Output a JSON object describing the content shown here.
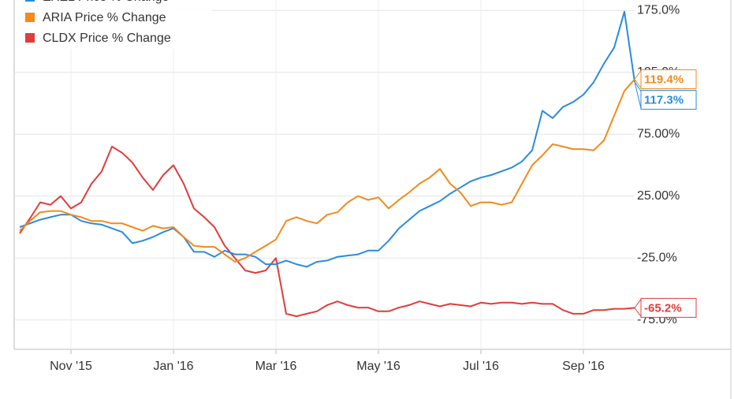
{
  "chart_data": {
    "type": "line",
    "categories": [
      null,
      null,
      null,
      null,
      null,
      "Nov '15",
      null,
      null,
      null,
      null,
      null,
      null,
      null,
      null,
      null,
      "Jan '16",
      null,
      null,
      null,
      null,
      null,
      null,
      null,
      null,
      null,
      "Mar '16",
      null,
      null,
      null,
      null,
      null,
      null,
      null,
      null,
      null,
      "May '16",
      null,
      null,
      null,
      null,
      null,
      null,
      null,
      null,
      null,
      "Jul '16",
      null,
      null,
      null,
      null,
      null,
      null,
      null,
      null,
      null,
      "Sep '16",
      null,
      null,
      null,
      null,
      null
    ],
    "series": [
      {
        "name": "EXEL Price % Change",
        "color": "#2a8be0",
        "values": [
          0,
          3,
          6,
          8,
          10,
          10,
          5,
          3,
          2,
          -1,
          -4,
          -13,
          -11,
          -8,
          -4,
          -1,
          -8,
          -20,
          -20,
          -24,
          -19,
          -22,
          -22,
          -24,
          -30,
          -30,
          -27,
          -30,
          -32,
          -28,
          -27,
          -24,
          -23,
          -22,
          -19,
          -19,
          -11,
          -1,
          6,
          13,
          17,
          21,
          27,
          32,
          37,
          40,
          42,
          45,
          48,
          53,
          62,
          94,
          88,
          97,
          101,
          107,
          117,
          132,
          145,
          174,
          117.3
        ],
        "value_labels": [
          null,
          null,
          null,
          null,
          null,
          null,
          null,
          null,
          null,
          null,
          null,
          null,
          null,
          null,
          null,
          null,
          null,
          null,
          null,
          null,
          null,
          null,
          null,
          null,
          null,
          null,
          null,
          null,
          null,
          null,
          null,
          null,
          null,
          null,
          null,
          null,
          null,
          null,
          null,
          null,
          null,
          null,
          null,
          null,
          null,
          null,
          null,
          null,
          null,
          null,
          null,
          null,
          null,
          null,
          null,
          null,
          null,
          null,
          null,
          null,
          "117.3%"
        ]
      },
      {
        "name": "ARIA Price % Change",
        "color": "#f28a1c",
        "values": [
          -3,
          5,
          12,
          13,
          13,
          10,
          8,
          5,
          5,
          3,
          3,
          0,
          -3,
          1,
          -1,
          0,
          -8,
          -15,
          -16,
          -16,
          -22,
          -28,
          -25,
          -20,
          -15,
          -10,
          5,
          8,
          5,
          3,
          10,
          12,
          20,
          25,
          22,
          24,
          15,
          22,
          28,
          35,
          40,
          47,
          35,
          28,
          17,
          20,
          20,
          18,
          20,
          35,
          50,
          58,
          67,
          65,
          63,
          63,
          62,
          70,
          90,
          110,
          119.4
        ],
        "value_labels": [
          null,
          null,
          null,
          null,
          null,
          null,
          null,
          null,
          null,
          null,
          null,
          null,
          null,
          null,
          null,
          null,
          null,
          null,
          null,
          null,
          null,
          null,
          null,
          null,
          null,
          null,
          null,
          null,
          null,
          null,
          null,
          null,
          null,
          null,
          null,
          null,
          null,
          null,
          null,
          null,
          null,
          null,
          null,
          null,
          null,
          null,
          null,
          null,
          null,
          null,
          null,
          null,
          null,
          null,
          null,
          null,
          null,
          null,
          null,
          null,
          "119.4%"
        ]
      },
      {
        "name": "CLDX Price % Change",
        "color": "#e03c3c",
        "values": [
          -5,
          7,
          20,
          18,
          25,
          15,
          20,
          35,
          45,
          65,
          60,
          52,
          40,
          30,
          42,
          50,
          35,
          15,
          8,
          0,
          -15,
          -25,
          -35,
          -37,
          -35,
          -25,
          -70,
          -72,
          -70,
          -68,
          -63,
          -60,
          -63,
          -65,
          -65,
          -68,
          -68,
          -65,
          -63,
          -60,
          -62,
          -64,
          -62,
          -63,
          -64,
          -61,
          -62,
          -61,
          -61,
          -62,
          -61,
          -62,
          -62,
          -67,
          -70,
          -70,
          -67,
          -67,
          -66,
          -66,
          -65.2
        ],
        "value_labels": [
          null,
          null,
          null,
          null,
          null,
          null,
          null,
          null,
          null,
          null,
          null,
          null,
          null,
          null,
          null,
          null,
          null,
          null,
          null,
          null,
          null,
          null,
          null,
          null,
          null,
          null,
          null,
          null,
          null,
          null,
          null,
          null,
          null,
          null,
          null,
          null,
          null,
          null,
          null,
          null,
          null,
          null,
          null,
          null,
          null,
          null,
          null,
          null,
          null,
          null,
          null,
          null,
          null,
          null,
          null,
          null,
          null,
          null,
          null,
          null,
          "-65.2%"
        ]
      }
    ],
    "ylim": [
      -98.7,
      183.4
    ],
    "yticks": [
      {
        "value": -75,
        "label": "-75.0%"
      },
      {
        "value": -25,
        "label": "-25.0%"
      },
      {
        "value": 25,
        "label": "25.00%"
      },
      {
        "value": 75,
        "label": "75.00%"
      },
      {
        "value": 125,
        "label": "125.0%"
      },
      {
        "value": 175,
        "label": "175.0%"
      }
    ],
    "grid": true,
    "legend": "top-left"
  }
}
